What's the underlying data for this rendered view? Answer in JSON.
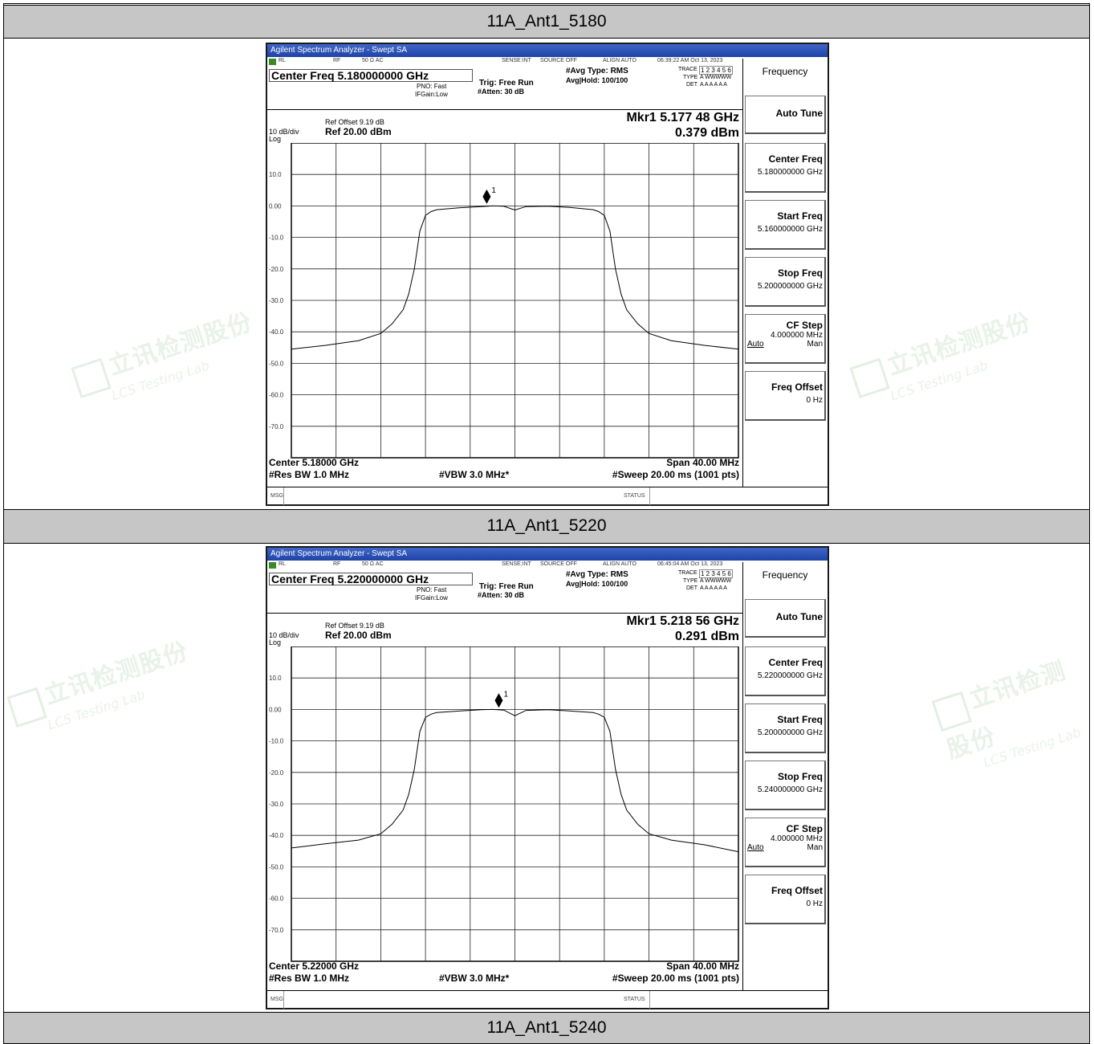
{
  "sections": [
    {
      "title": "11A_Ant1_5180",
      "window_title": "Agilent Spectrum Analyzer - Swept SA",
      "topbar": {
        "rl": "RL",
        "rf": "RF",
        "ohm": "50 Ω AC",
        "sense": "SENSE:INT",
        "source": "SOURCE OFF",
        "align": "ALIGN AUTO",
        "timestamp": "06:39:22 AM Oct 13, 2023"
      },
      "center_freq_label": "Center Freq 5.180000000 GHz",
      "pno": "PNO: Fast",
      "ifgain": "IFGain:Low",
      "trig": "Trig: Free Run",
      "atten": "#Atten: 30 dB",
      "avg_type": "#Avg Type: RMS",
      "avg_hold": "Avg|Hold: 100/100",
      "trace_label": "TRACE",
      "trace_nums": "1 2 3 4 5 6",
      "type_label": "TYPE",
      "type_val": "A WWWWW",
      "det_label": "DET",
      "det_val": "A A A A A A",
      "ref_offset": "Ref Offset 9.19 dB",
      "scale": "10 dB/div",
      "ref_level": "Ref 20.00 dBm",
      "log": "Log",
      "marker_freq": "Mkr1 5.177 48 GHz",
      "marker_amp": "0.379 dBm",
      "footer": {
        "center": "Center 5.18000 GHz",
        "span": "Span 40.00 MHz",
        "rbw": "#Res BW 1.0 MHz",
        "vbw": "#VBW 3.0 MHz*",
        "sweep": "#Sweep  20.00 ms (1001 pts)"
      },
      "msg": "MSG",
      "status": "STATUS",
      "menu": {
        "title": "Frequency",
        "auto_tune": "Auto Tune",
        "center_freq": "Center Freq",
        "center_val": "5.180000000 GHz",
        "start_freq": "Start Freq",
        "start_val": "5.160000000 GHz",
        "stop_freq": "Stop Freq",
        "stop_val": "5.200000000 GHz",
        "cf_step": "CF Step",
        "cf_step_val": "4.000000 MHz",
        "auto": "Auto",
        "man": "Man",
        "freq_offset": "Freq Offset",
        "freq_offset_val": "0 Hz"
      }
    },
    {
      "title": "11A_Ant1_5220",
      "window_title": "Agilent Spectrum Analyzer - Swept SA",
      "topbar": {
        "rl": "RL",
        "rf": "RF",
        "ohm": "50 Ω AC",
        "sense": "SENSE:INT",
        "source": "SOURCE OFF",
        "align": "ALIGN AUTO",
        "timestamp": "06:45:04 AM Oct 13, 2023"
      },
      "center_freq_label": "Center Freq 5.220000000 GHz",
      "pno": "PNO: Fast",
      "ifgain": "IFGain:Low",
      "trig": "Trig: Free Run",
      "atten": "#Atten: 30 dB",
      "avg_type": "#Avg Type: RMS",
      "avg_hold": "Avg|Hold: 100/100",
      "trace_label": "TRACE",
      "trace_nums": "1 2 3 4 5 6",
      "type_label": "TYPE",
      "type_val": "A WWWWW",
      "det_label": "DET",
      "det_val": "A A A A A A",
      "ref_offset": "Ref Offset 9.19 dB",
      "scale": "10 dB/div",
      "ref_level": "Ref 20.00 dBm",
      "log": "Log",
      "marker_freq": "Mkr1 5.218 56 GHz",
      "marker_amp": "0.291 dBm",
      "footer": {
        "center": "Center 5.22000 GHz",
        "span": "Span 40.00 MHz",
        "rbw": "#Res BW 1.0 MHz",
        "vbw": "#VBW 3.0 MHz*",
        "sweep": "#Sweep  20.00 ms (1001 pts)"
      },
      "msg": "MSG",
      "status": "STATUS",
      "menu": {
        "title": "Frequency",
        "auto_tune": "Auto Tune",
        "center_freq": "Center Freq",
        "center_val": "5.220000000 GHz",
        "start_freq": "Start Freq",
        "start_val": "5.200000000 GHz",
        "stop_freq": "Stop Freq",
        "stop_val": "5.240000000 GHz",
        "cf_step": "CF Step",
        "cf_step_val": "4.000000 MHz",
        "auto": "Auto",
        "man": "Man",
        "freq_offset": "Freq Offset",
        "freq_offset_val": "0 Hz"
      }
    },
    {
      "title": "11A_Ant1_5240"
    }
  ],
  "watermark": {
    "cn": "立讯检测股份",
    "en": "LCS Testing Lab"
  },
  "chart_data": [
    {
      "type": "line",
      "y_tick_labels": [
        "10.0",
        "0.00",
        "-10.0",
        "-20.0",
        "-30.0",
        "-40.0",
        "-50.0",
        "-60.0",
        "-70.0"
      ],
      "xlim": [
        5.16,
        5.2
      ],
      "ylim": [
        -80,
        20
      ],
      "x_unit": "GHz",
      "y_unit": "dBm",
      "marker": {
        "label": "1",
        "x": 5.17748,
        "y": 0.379
      },
      "series": [
        {
          "x": [
            5.16,
            5.163,
            5.166,
            5.168,
            5.169,
            5.17,
            5.1705,
            5.171,
            5.1715,
            5.172,
            5.1725,
            5.173,
            5.175,
            5.177,
            5.178,
            5.179,
            5.18,
            5.181,
            5.183,
            5.185,
            5.187,
            5.1875,
            5.188,
            5.1885,
            5.189,
            5.1895,
            5.19,
            5.191,
            5.192,
            5.194,
            5.197,
            5.2
          ],
          "y": [
            -45.5,
            -44.3,
            -42.8,
            -40.5,
            -37.5,
            -33,
            -28,
            -20,
            -8,
            -3,
            -1.8,
            -1.2,
            -0.6,
            -0.2,
            0,
            -0.1,
            -1.3,
            -0.2,
            -0.1,
            -0.5,
            -1.2,
            -1.8,
            -3,
            -8,
            -20,
            -28,
            -33,
            -37.5,
            -40.5,
            -42.8,
            -44.3,
            -45.5
          ]
        }
      ]
    },
    {
      "type": "line",
      "y_tick_labels": [
        "10.0",
        "0.00",
        "-10.0",
        "-20.0",
        "-30.0",
        "-40.0",
        "-50.0",
        "-60.0",
        "-70.0"
      ],
      "xlim": [
        5.2,
        5.24
      ],
      "ylim": [
        -80,
        20
      ],
      "x_unit": "GHz",
      "y_unit": "dBm",
      "marker": {
        "label": "1",
        "x": 5.21856,
        "y": 0.291
      },
      "series": [
        {
          "x": [
            5.2,
            5.203,
            5.206,
            5.208,
            5.209,
            5.21,
            5.2105,
            5.211,
            5.2115,
            5.212,
            5.2125,
            5.213,
            5.215,
            5.217,
            5.218,
            5.219,
            5.22,
            5.221,
            5.223,
            5.225,
            5.227,
            5.2275,
            5.228,
            5.2285,
            5.229,
            5.2295,
            5.23,
            5.231,
            5.232,
            5.234,
            5.237,
            5.24
          ],
          "y": [
            -44,
            -42.7,
            -41.5,
            -39.5,
            -36.5,
            -32,
            -27,
            -19,
            -7,
            -2.5,
            -1.5,
            -1,
            -0.5,
            -0.1,
            0,
            -0.2,
            -2,
            -0.3,
            -0.1,
            -0.5,
            -1,
            -1.5,
            -2.5,
            -7,
            -19,
            -27,
            -32,
            -36.5,
            -39.5,
            -41.5,
            -43,
            -45.2
          ]
        }
      ]
    }
  ]
}
